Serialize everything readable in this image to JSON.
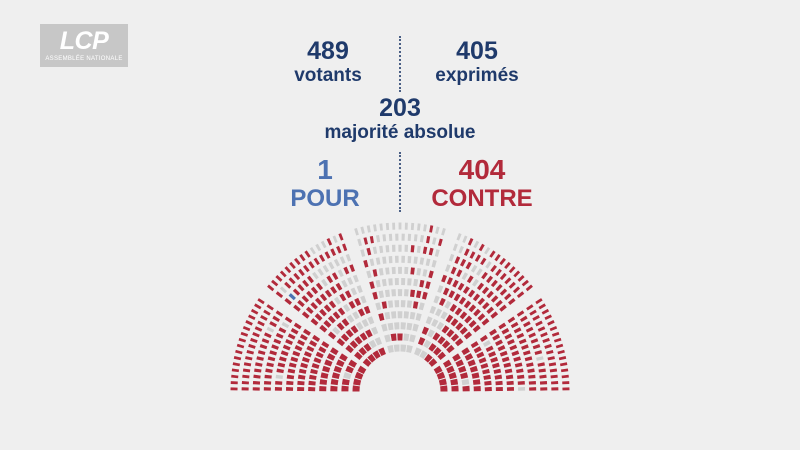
{
  "logo": {
    "text": "LCP",
    "subtitle": "ASSEMBLÉE NATIONALE"
  },
  "stats": {
    "votants": {
      "value": "489",
      "label": "votants"
    },
    "exprimes": {
      "value": "405",
      "label": "exprimés"
    },
    "majorite": {
      "value": "203",
      "label": "majorité absolue"
    }
  },
  "result": {
    "pour": {
      "value": "1",
      "label": "POUR"
    },
    "contre": {
      "value": "404",
      "label": "CONTRE"
    }
  },
  "colors": {
    "background": "#efefef",
    "title_blue": "#1f3a6b",
    "pour_blue": "#4d72b2",
    "contre_red": "#b22a3b",
    "seat_empty": "#d0d0d0"
  }
}
